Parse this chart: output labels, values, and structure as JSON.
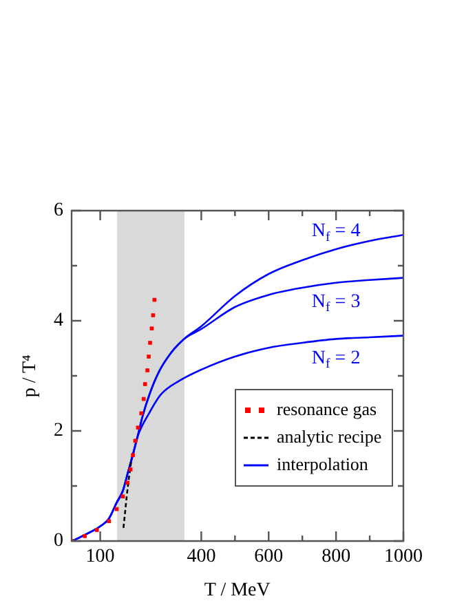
{
  "chart_data": {
    "type": "line",
    "xlabel": "T / MeV",
    "ylabel": "p / T⁴",
    "xlim": [
      15,
      1000
    ],
    "xticks": [
      100,
      400,
      {
        "value": 500,
        "label": null
      },
      600,
      {
        "value": 700,
        "label": null
      },
      800,
      {
        "value": 900,
        "label": null
      },
      1000
    ],
    "ylim": [
      0,
      6
    ],
    "yticks": [
      0,
      {
        "value": 1,
        "label": null
      },
      2,
      {
        "value": 3,
        "label": null
      },
      4,
      {
        "value": 5,
        "label": null
      },
      6
    ],
    "grid": false,
    "legend": "bottom right",
    "bands": [
      {
        "axis": "x",
        "from": 150,
        "to": 350,
        "color": "#d9d9d9"
      }
    ],
    "series": [
      {
        "name": "resonance gas",
        "type": "scatter",
        "marker": "square",
        "color": "#ff0000",
        "x": [
          17,
          54,
          90,
          126,
          149,
          167,
          181,
          190,
          197,
          204,
          212,
          222,
          229,
          233,
          240,
          244,
          248,
          253,
          257,
          261
        ],
        "values": [
          0,
          0.09,
          0.2,
          0.36,
          0.58,
          0.81,
          1.06,
          1.3,
          1.56,
          1.82,
          2.06,
          2.32,
          2.58,
          2.85,
          3.1,
          3.35,
          3.6,
          3.86,
          4.1,
          4.38
        ]
      },
      {
        "name": "analytic recipe",
        "type": "line",
        "line_style": "dashed",
        "color": "#000000",
        "x": [
          169,
          182,
          193
        ],
        "values": [
          0.24,
          0.99,
          1.49
        ]
      },
      {
        "line_style": "solid",
        "color": "#0000ff",
        "x": [
          17,
          57,
          98,
          126,
          149,
          167,
          182,
          197,
          211,
          225,
          246,
          274,
          308,
          349,
          400,
          500,
          600,
          700,
          800,
          900,
          1000
        ],
        "values": [
          0,
          0.12,
          0.26,
          0.41,
          0.7,
          0.91,
          1.24,
          1.57,
          1.9,
          2.25,
          2.66,
          3.07,
          3.4,
          3.67,
          3.9,
          4.45,
          4.85,
          5.1,
          5.3,
          5.45,
          5.56
        ]
      },
      {
        "name": "interpolation",
        "line_style": "solid",
        "color": "#0000ff",
        "x": [
          17,
          57,
          98,
          126,
          149,
          167,
          182,
          197,
          211,
          225,
          246,
          274,
          308,
          349,
          400,
          500,
          600,
          700,
          800,
          900,
          1000
        ],
        "values": [
          0,
          0.12,
          0.26,
          0.41,
          0.7,
          0.91,
          1.24,
          1.57,
          1.9,
          2.25,
          2.66,
          3.07,
          3.4,
          3.67,
          3.85,
          4.25,
          4.47,
          4.6,
          4.69,
          4.74,
          4.78
        ]
      },
      {
        "line_style": "solid",
        "color": "#0000ff",
        "x": [
          17,
          57,
          98,
          126,
          149,
          167,
          182,
          197,
          211,
          246,
          280,
          335,
          403,
          500,
          600,
          700,
          800,
          900,
          1000
        ],
        "values": [
          0,
          0.12,
          0.26,
          0.41,
          0.7,
          0.91,
          1.24,
          1.57,
          1.9,
          2.33,
          2.66,
          2.91,
          3.12,
          3.35,
          3.51,
          3.6,
          3.67,
          3.7,
          3.73
        ]
      }
    ],
    "annotations": [
      "N$_{f}$ = 4",
      "N$_{f}$ = 3",
      "N$_{f}$ = 2"
    ]
  }
}
